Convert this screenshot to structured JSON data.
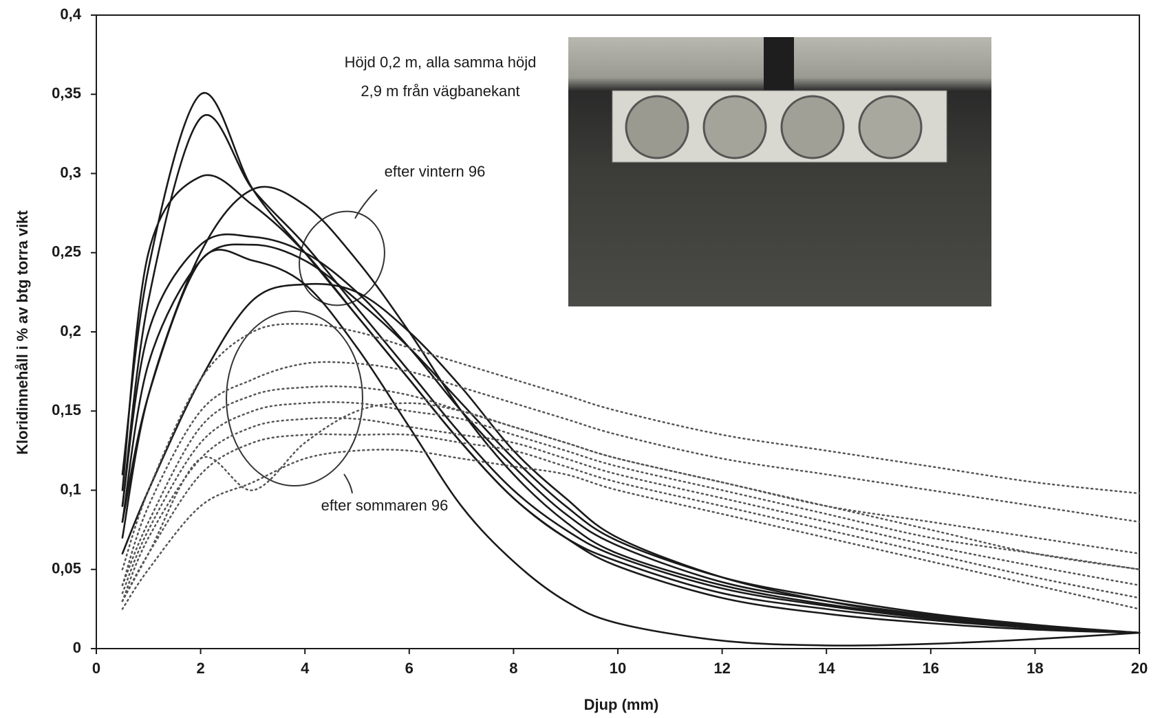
{
  "chart_data": {
    "type": "line",
    "x_label": "Djup (mm)",
    "y_label": "Kloridinnehåll i % av btg torra vikt",
    "annotations": [
      "Höjd 0,2 m, alla samma höjd",
      "2,9 m från vägbanekant",
      "efter vintern 96",
      "efter sommaren 96"
    ],
    "x": [
      0.5,
      1,
      2,
      3,
      4,
      5,
      6,
      7,
      8,
      9,
      10,
      12,
      14,
      16,
      18,
      20
    ],
    "xlim": [
      0,
      20
    ],
    "xticks": [
      0,
      2,
      4,
      6,
      8,
      10,
      12,
      14,
      16,
      18,
      20
    ],
    "ylim": [
      0,
      0.4
    ],
    "yticks": [
      0,
      {
        "value": 0.05,
        "label": "0,05"
      },
      {
        "value": 0.1,
        "label": "0,1"
      },
      {
        "value": 0.15,
        "label": "0,15"
      },
      {
        "value": 0.2,
        "label": "0,2"
      },
      {
        "value": 0.25,
        "label": "0,25"
      },
      {
        "value": 0.3,
        "label": "0,3"
      },
      {
        "value": 0.35,
        "label": "0,35"
      },
      {
        "value": 0.4,
        "label": "0,4"
      }
    ],
    "grid": false,
    "series": [
      {
        "color": "#1a1a1a",
        "style": "solid",
        "values": [
          0.11,
          0.24,
          0.35,
          0.29,
          0.25,
          0.21,
          0.17,
          0.13,
          0.095,
          0.07,
          0.055,
          0.035,
          0.025,
          0.018,
          0.013,
          0.01
        ]
      },
      {
        "color": "#1a1a1a",
        "style": "solid",
        "values": [
          0.09,
          0.22,
          0.335,
          0.29,
          0.255,
          0.215,
          0.175,
          0.135,
          0.1,
          0.075,
          0.058,
          0.038,
          0.027,
          0.019,
          0.013,
          0.01
        ]
      },
      {
        "color": "#1a1a1a",
        "style": "solid",
        "values": [
          0.1,
          0.25,
          0.298,
          0.28,
          0.25,
          0.21,
          0.17,
          0.13,
          0.095,
          0.07,
          0.052,
          0.032,
          0.022,
          0.016,
          0.012,
          0.01
        ]
      },
      {
        "color": "#1a1a1a",
        "style": "solid",
        "values": [
          0.07,
          0.16,
          0.25,
          0.29,
          0.28,
          0.245,
          0.2,
          0.15,
          0.11,
          0.08,
          0.06,
          0.04,
          0.028,
          0.02,
          0.014,
          0.01
        ]
      },
      {
        "color": "#1a1a1a",
        "style": "solid",
        "values": [
          0.09,
          0.2,
          0.255,
          0.26,
          0.25,
          0.225,
          0.19,
          0.15,
          0.115,
          0.085,
          0.065,
          0.042,
          0.03,
          0.021,
          0.014,
          0.01
        ]
      },
      {
        "color": "#1a1a1a",
        "style": "solid",
        "values": [
          0.08,
          0.18,
          0.245,
          0.255,
          0.245,
          0.22,
          0.19,
          0.155,
          0.12,
          0.09,
          0.068,
          0.045,
          0.032,
          0.022,
          0.015,
          0.01
        ]
      },
      {
        "color": "#1a1a1a",
        "style": "solid",
        "values": [
          0.06,
          0.1,
          0.17,
          0.22,
          0.23,
          0.225,
          0.2,
          0.165,
          0.125,
          0.095,
          0.07,
          0.045,
          0.03,
          0.02,
          0.014,
          0.01
        ]
      },
      {
        "color": "#1a1a1a",
        "style": "solid",
        "values": [
          0.08,
          0.16,
          0.245,
          0.245,
          0.23,
          0.19,
          0.14,
          0.09,
          0.055,
          0.03,
          0.016,
          0.005,
          0.002,
          0.003,
          0.006,
          0.01
        ]
      },
      {
        "color": "#555555",
        "style": "dotted",
        "values": [
          0.05,
          0.1,
          0.17,
          0.2,
          0.205,
          0.2,
          0.19,
          0.18,
          0.17,
          0.16,
          0.15,
          0.135,
          0.125,
          0.115,
          0.105,
          0.098
        ]
      },
      {
        "color": "#555555",
        "style": "dotted",
        "values": [
          0.04,
          0.09,
          0.15,
          0.17,
          0.18,
          0.18,
          0.175,
          0.165,
          0.155,
          0.145,
          0.135,
          0.12,
          0.11,
          0.1,
          0.09,
          0.08
        ]
      },
      {
        "color": "#555555",
        "style": "dotted",
        "values": [
          0.04,
          0.08,
          0.14,
          0.16,
          0.165,
          0.165,
          0.16,
          0.15,
          0.14,
          0.13,
          0.12,
          0.105,
          0.09,
          0.08,
          0.07,
          0.06
        ]
      },
      {
        "color": "#555555",
        "style": "dotted",
        "values": [
          0.035,
          0.075,
          0.13,
          0.15,
          0.155,
          0.155,
          0.15,
          0.145,
          0.135,
          0.125,
          0.115,
          0.1,
          0.085,
          0.07,
          0.06,
          0.05
        ]
      },
      {
        "color": "#555555",
        "style": "dotted",
        "values": [
          0.03,
          0.07,
          0.12,
          0.14,
          0.145,
          0.145,
          0.14,
          0.135,
          0.13,
          0.12,
          0.11,
          0.095,
          0.08,
          0.065,
          0.052,
          0.04
        ]
      },
      {
        "color": "#555555",
        "style": "dotted",
        "values": [
          0.03,
          0.06,
          0.11,
          0.13,
          0.135,
          0.135,
          0.135,
          0.13,
          0.125,
          0.115,
          0.105,
          0.09,
          0.075,
          0.06,
          0.045,
          0.032
        ]
      },
      {
        "color": "#555555",
        "style": "dotted",
        "values": [
          0.025,
          0.05,
          0.09,
          0.105,
          0.12,
          0.125,
          0.125,
          0.12,
          0.115,
          0.11,
          0.1,
          0.085,
          0.07,
          0.055,
          0.04,
          0.025
        ]
      },
      {
        "color": "#555555",
        "style": "dotted",
        "values": [
          0.03,
          0.06,
          0.12,
          0.1,
          0.13,
          0.15,
          0.155,
          0.15,
          0.14,
          0.13,
          0.12,
          0.105,
          0.09,
          0.075,
          0.06,
          0.05
        ]
      }
    ]
  }
}
